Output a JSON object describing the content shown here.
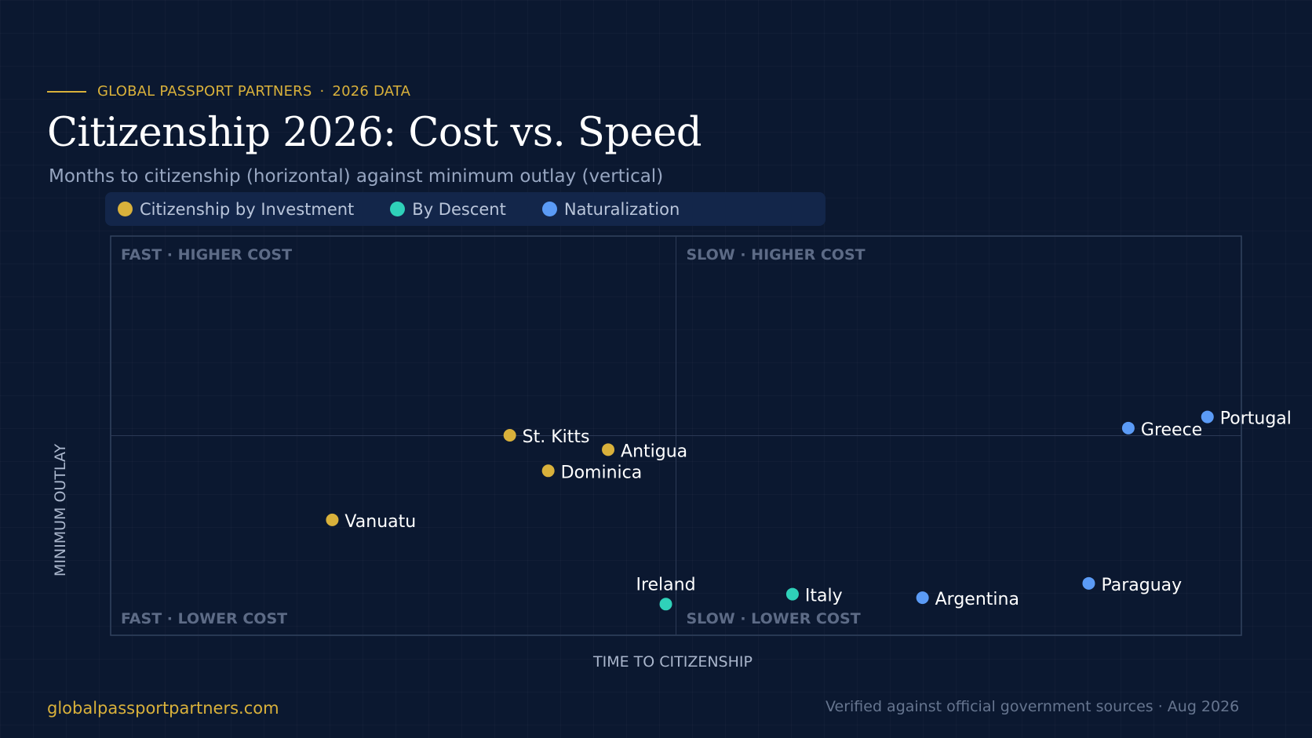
{
  "header": {
    "eyebrow_brand": "GLOBAL PASSPORT PARTNERS",
    "eyebrow_separator": "·",
    "eyebrow_year": "2026 DATA",
    "title": "Citizenship 2026: Cost vs. Speed",
    "subtitle": "Months to citizenship (horizontal) against minimum outlay (vertical)"
  },
  "footer": {
    "website": "globalpassportpartners.com",
    "note": "Verified against official government sources · Aug 2026"
  },
  "colors": {
    "accent_gold": "#d9b13b",
    "investment": "#d9b13b",
    "descent": "#2fd1b9",
    "naturalization": "#5b9bf6"
  },
  "chart_data": {
    "type": "scatter",
    "xlabel": "TIME  TO  CITIZENSHIP",
    "ylabel": "MINIMUM  OUTLAY",
    "xlim": [
      0,
      1
    ],
    "ylim": [
      0,
      1
    ],
    "x_ticks": "none",
    "y_ticks": "none",
    "quadrants": {
      "top_left": "FAST · HIGHER COST",
      "top_right": "SLOW · HIGHER COST",
      "bottom_left": "FAST · LOWER COST",
      "bottom_right": "SLOW · LOWER COST"
    },
    "legend": [
      {
        "name": "Citizenship by Investment",
        "color": "#d9b13b"
      },
      {
        "name": "By Descent",
        "color": "#2fd1b9"
      },
      {
        "name": "Naturalization",
        "color": "#5b9bf6"
      }
    ],
    "series": [
      {
        "name": "Citizenship by Investment",
        "color": "#d9b13b",
        "points": [
          {
            "label": "St. Kitts",
            "x": 0.353,
            "y": 0.501,
            "label_pos": "right"
          },
          {
            "label": "Antigua",
            "x": 0.44,
            "y": 0.465,
            "label_pos": "right"
          },
          {
            "label": "Dominica",
            "x": 0.387,
            "y": 0.412,
            "label_pos": "right"
          },
          {
            "label": "Vanuatu",
            "x": 0.196,
            "y": 0.289,
            "label_pos": "right"
          }
        ]
      },
      {
        "name": "By Descent",
        "color": "#2fd1b9",
        "points": [
          {
            "label": "Ireland",
            "x": 0.491,
            "y": 0.078,
            "label_pos": "above"
          },
          {
            "label": "Italy",
            "x": 0.603,
            "y": 0.103,
            "label_pos": "right"
          }
        ]
      },
      {
        "name": "Naturalization",
        "color": "#5b9bf6",
        "points": [
          {
            "label": "Argentina",
            "x": 0.718,
            "y": 0.094,
            "label_pos": "right"
          },
          {
            "label": "Paraguay",
            "x": 0.865,
            "y": 0.13,
            "label_pos": "right"
          },
          {
            "label": "Greece",
            "x": 0.9,
            "y": 0.519,
            "label_pos": "right"
          },
          {
            "label": "Portugal",
            "x": 0.97,
            "y": 0.547,
            "label_pos": "right"
          }
        ]
      }
    ]
  }
}
